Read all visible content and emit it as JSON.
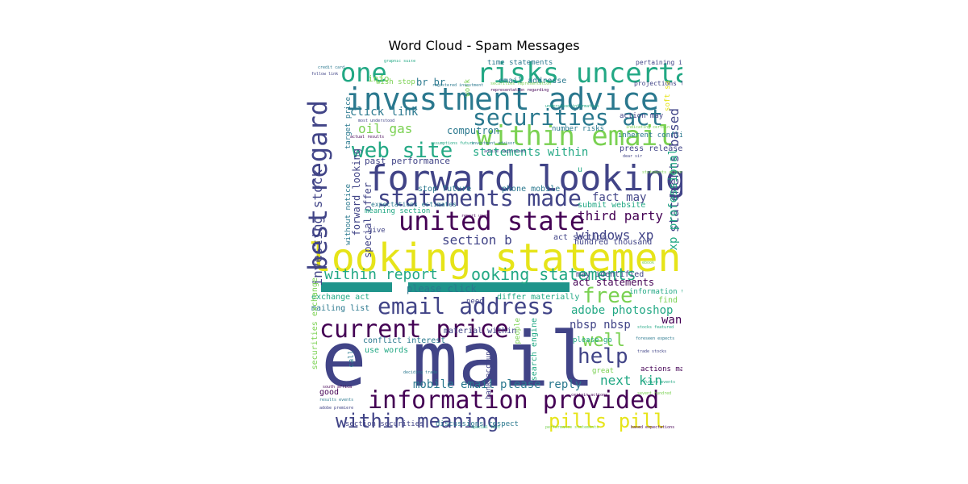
{
  "title": "Word Cloud - Spam Messages",
  "colors": {
    "yellow": "#e6e419",
    "green": "#7ad151",
    "teal": "#22a884",
    "blue": "#2a788e",
    "indigo": "#414487",
    "purple": "#440154"
  },
  "words": [
    {
      "text": "e mail",
      "color": "indigo"
    },
    {
      "text": "looking statement",
      "color": "yellow"
    },
    {
      "text": "forward looking",
      "color": "indigo"
    },
    {
      "text": "investment advice",
      "color": "blue"
    },
    {
      "text": "risks uncertainties",
      "color": "teal"
    },
    {
      "text": "within email",
      "color": "green"
    },
    {
      "text": "securities act",
      "color": "blue"
    },
    {
      "text": "united state",
      "color": "purple"
    },
    {
      "text": "statements made",
      "color": "indigo"
    },
    {
      "text": "information provided",
      "color": "purple"
    },
    {
      "text": "email address",
      "color": "indigo"
    },
    {
      "text": "current price",
      "color": "purple"
    },
    {
      "text": "best regard",
      "color": "indigo"
    },
    {
      "text": "web site",
      "color": "teal"
    },
    {
      "text": "one",
      "color": "teal"
    },
    {
      "text": "within meaning",
      "color": "indigo"
    },
    {
      "text": "pills pill",
      "color": "yellow"
    },
    {
      "text": "help",
      "color": "indigo"
    },
    {
      "text": "free",
      "color": "green"
    },
    {
      "text": "well",
      "color": "green"
    },
    {
      "text": "ooking statements",
      "color": "teal"
    },
    {
      "text": "within report",
      "color": "teal"
    },
    {
      "text": "statements within",
      "color": "teal"
    },
    {
      "text": "windows xp",
      "color": "indigo"
    },
    {
      "text": "third party",
      "color": "purple"
    },
    {
      "text": "section b",
      "color": "indigo"
    },
    {
      "text": "fact may",
      "color": "indigo"
    },
    {
      "text": "click link",
      "color": "blue"
    },
    {
      "text": "oil gas",
      "color": "green"
    },
    {
      "text": "investing stock",
      "color": "indigo"
    },
    {
      "text": "statements based",
      "color": "indigo"
    },
    {
      "text": "xp professional",
      "color": "teal"
    },
    {
      "text": "mobile email",
      "color": "blue"
    },
    {
      "text": "please reply",
      "color": "blue"
    },
    {
      "text": "next kin",
      "color": "teal"
    },
    {
      "text": "want",
      "color": "purple"
    },
    {
      "text": "adobe photoshop",
      "color": "teal"
    },
    {
      "text": "nbsp nbsp",
      "color": "indigo"
    },
    {
      "text": "act statements",
      "color": "purple"
    },
    {
      "text": "please click",
      "color": "blue"
    },
    {
      "text": "exchange act",
      "color": "teal"
    },
    {
      "text": "mailing list",
      "color": "blue"
    },
    {
      "text": "securities exchange",
      "color": "green"
    },
    {
      "text": "forward looking",
      "color": "indigo"
    },
    {
      "text": "special offer",
      "color": "indigo"
    },
    {
      "text": "computron",
      "color": "blue"
    },
    {
      "text": "past performance",
      "color": "indigo"
    },
    {
      "text": "br br",
      "color": "blue"
    },
    {
      "text": "info",
      "color": "green"
    },
    {
      "text": "email addresse",
      "color": "blue"
    },
    {
      "text": "time statements",
      "color": "blue"
    },
    {
      "text": "stop future",
      "color": "blue"
    },
    {
      "text": "phone mobile",
      "color": "blue"
    },
    {
      "text": "submit website",
      "color": "teal"
    },
    {
      "text": "act section",
      "color": "indigo"
    },
    {
      "text": "hundred thousand",
      "color": "indigo"
    },
    {
      "text": "may identified",
      "color": "indigo"
    },
    {
      "text": "differ materially",
      "color": "teal"
    },
    {
      "text": "material within",
      "color": "indigo"
    },
    {
      "text": "conflict interest",
      "color": "blue"
    },
    {
      "text": "use words",
      "color": "teal"
    },
    {
      "text": "good",
      "color": "purple"
    },
    {
      "text": "section securities",
      "color": "indigo"
    },
    {
      "text": "discussions respect",
      "color": "blue"
    },
    {
      "text": "search engine",
      "color": "teal"
    },
    {
      "text": "bank account",
      "color": "indigo"
    },
    {
      "text": "please go",
      "color": "teal"
    },
    {
      "text": "great",
      "color": "green"
    },
    {
      "text": "actions may",
      "color": "purple"
    },
    {
      "text": "press release",
      "color": "indigo"
    },
    {
      "text": "inherent conflict",
      "color": "blue"
    },
    {
      "text": "number risks",
      "color": "blue"
    },
    {
      "text": "meaning section",
      "color": "teal"
    },
    {
      "text": "give",
      "color": "indigo"
    },
    {
      "text": "need",
      "color": "indigo"
    },
    {
      "text": "call",
      "color": "blue"
    },
    {
      "text": "work",
      "color": "green"
    },
    {
      "text": "target price",
      "color": "blue"
    },
    {
      "text": "information within",
      "color": "teal"
    },
    {
      "text": "find",
      "color": "green"
    },
    {
      "text": "action may",
      "color": "indigo"
    },
    {
      "text": "wish stop",
      "color": "green"
    },
    {
      "text": "without notice",
      "color": "blue"
    },
    {
      "text": "people",
      "color": "green"
    },
    {
      "text": "soft sa",
      "color": "yellow"
    },
    {
      "text": "expectations estimates",
      "color": "blue"
    },
    {
      "text": "u",
      "color": "teal"
    },
    {
      "text": "projections time",
      "color": "indigo"
    },
    {
      "text": "pertaining investing",
      "color": "indigo"
    }
  ],
  "tiny_words": [
    "graphic suite",
    "credit card",
    "follow link",
    "securities representation",
    "representation regarding",
    "understood information",
    "registered investment",
    "most understood",
    "indicating certain",
    "actual results",
    "assumptions future",
    "investment advisor",
    "dear sir",
    "statements action",
    "south africa",
    "stocks featured",
    "foreseen expects",
    "trade stocks",
    "ebook",
    "certain actions",
    "future events",
    "results events",
    "adobe premiere",
    "performance statements",
    "based expectations",
    "special fact",
    "deciding trade",
    "advice registered",
    "sevent hundred",
    "report upon"
  ]
}
